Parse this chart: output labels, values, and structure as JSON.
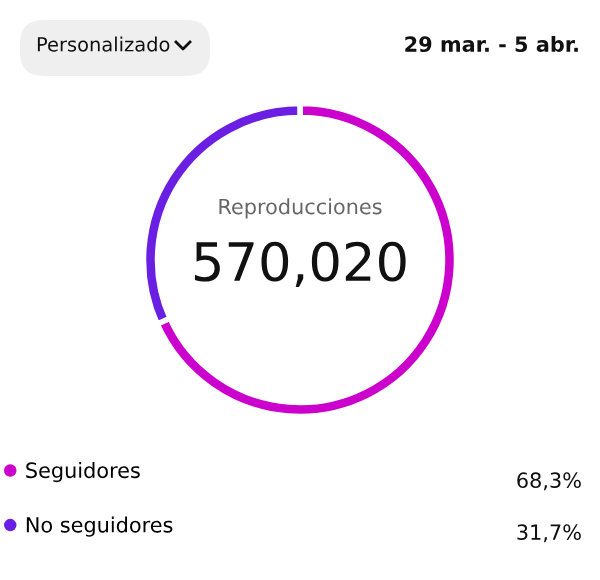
{
  "chart_data": {
    "type": "donut",
    "title": "570,020",
    "subtitle": "Reproducciones",
    "categories": [
      "Seguidores",
      "No seguidores"
    ],
    "values": [
      68.3,
      31.7
    ],
    "colors": [
      "#cc00cc",
      "#6a1fe3"
    ],
    "value_labels": [
      "68,3%",
      "31,7%"
    ],
    "legend": "bottom",
    "annotations": [
      "Personalizado",
      "29 mar. - 5 abr."
    ]
  }
}
